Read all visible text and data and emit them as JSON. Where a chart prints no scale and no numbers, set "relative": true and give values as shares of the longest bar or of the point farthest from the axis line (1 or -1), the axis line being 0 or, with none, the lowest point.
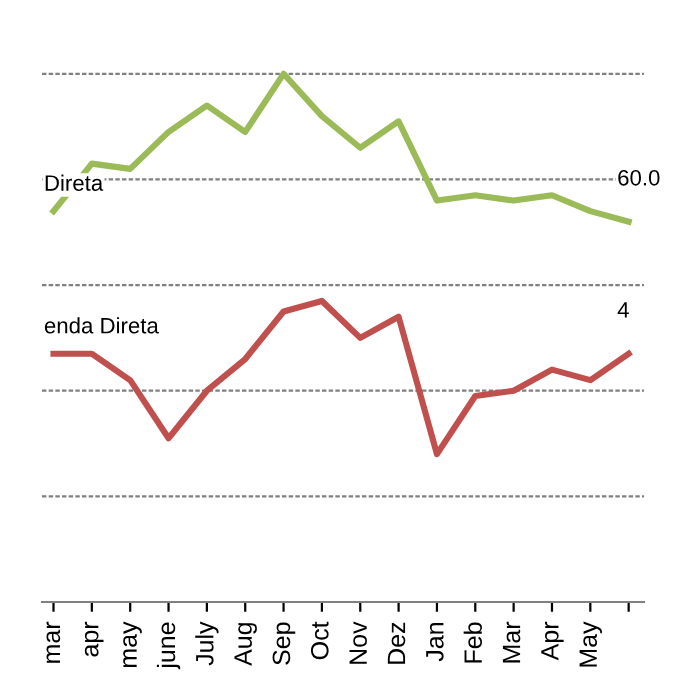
{
  "chart_data": {
    "type": "line",
    "relative": true,
    "grid": "y",
    "tick_labels": "x",
    "line_style": "solid",
    "categories": [
      "mar",
      "apr",
      "may",
      "june",
      "July",
      "Aug",
      "Sep",
      "Oct",
      "Nov",
      "Dez",
      "Jan",
      "Feb",
      "Mar",
      "Apr",
      "May",
      null
    ],
    "series": [
      {
        "name": "Direta",
        "color": "#9bbb59",
        "values": [
          0.74,
          0.83,
          0.82,
          0.89,
          0.94,
          0.89,
          1.0,
          0.92,
          0.86,
          0.91,
          0.76,
          0.77,
          0.76,
          0.77,
          0.74,
          0.72
        ]
      },
      {
        "name": "enda Direta",
        "color": "#c0504d",
        "values": [
          0.47,
          0.47,
          0.42,
          0.31,
          0.4,
          0.46,
          0.55,
          0.57,
          0.5,
          0.54,
          0.28,
          0.39,
          0.4,
          0.44,
          0.42,
          0.47
        ]
      }
    ],
    "annotations": [
      "60.0",
      "4"
    ]
  }
}
